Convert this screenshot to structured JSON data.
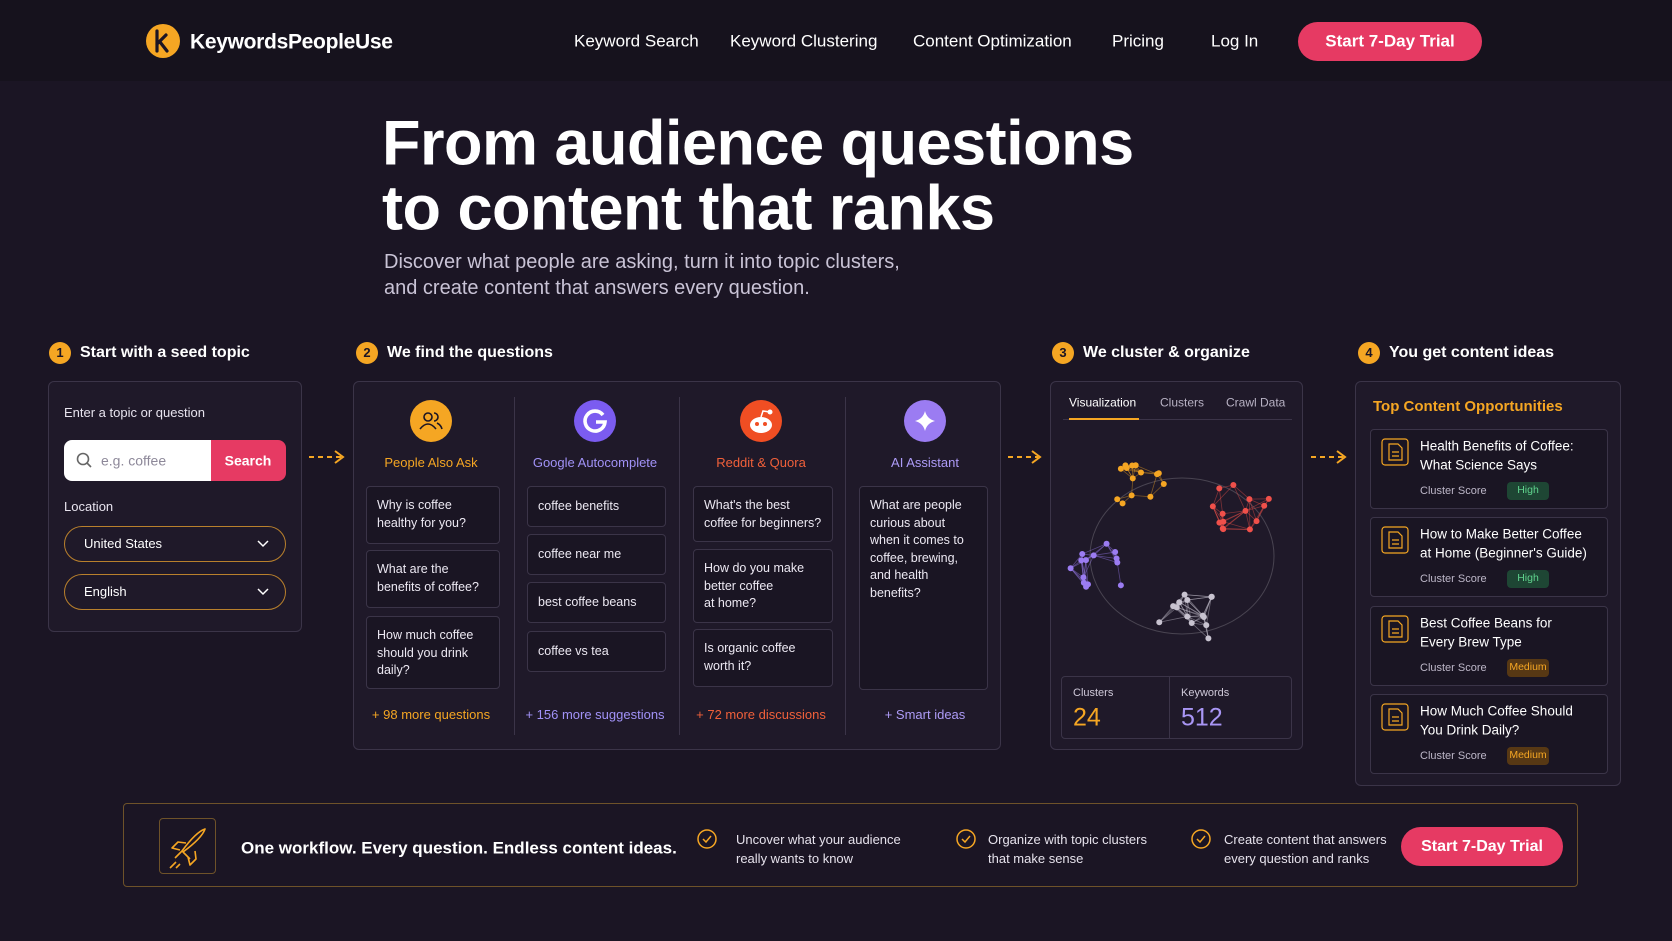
{
  "nav": {
    "brand": "KeywordsPeopleUse",
    "links": [
      "Keyword Search",
      "Keyword Clustering",
      "Content Optimization",
      "Pricing"
    ],
    "login": "Log In",
    "cta": "Start 7-Day Trial"
  },
  "hero": {
    "title_lines": [
      "From audience questions",
      "to content that ranks"
    ],
    "subtitle_lines": [
      "Discover what people are asking, turn it into topic clusters,",
      "and create content that answers every question."
    ]
  },
  "steps": [
    {
      "number": "1",
      "title": "Start with a seed topic"
    },
    {
      "number": "2",
      "title": "We find the questions"
    },
    {
      "number": "3",
      "title": "We cluster & organize"
    },
    {
      "number": "4",
      "title": "You get content ideas"
    }
  ],
  "seed": {
    "label": "Enter a topic or question",
    "placeholder": "e.g. coffee",
    "button": "Search",
    "location_label": "Location",
    "country": "United States",
    "language": "English"
  },
  "sources": [
    {
      "name": "People Also Ask",
      "items": [
        [
          "Why is coffee",
          "healthy for you?"
        ],
        [
          "What are the",
          "benefits of coffee?"
        ],
        [
          "How much coffee",
          "should you drink",
          "daily?"
        ]
      ],
      "more": "+ 98 more questions"
    },
    {
      "name": "Google Autocomplete",
      "items": [
        [
          "coffee benefits"
        ],
        [
          "coffee near me"
        ],
        [
          "best coffee beans"
        ],
        [
          "coffee vs tea"
        ]
      ],
      "more": "+ 156 more suggestions"
    },
    {
      "name": "Reddit & Quora",
      "items": [
        [
          "What's the best",
          "coffee for beginners?"
        ],
        [
          "How do you make",
          "better coffee",
          "at home?"
        ],
        [
          "Is organic coffee",
          "worth it?"
        ]
      ],
      "more": "+ 72 more discussions"
    },
    {
      "name": "AI Assistant",
      "items": [
        [
          "What are people",
          "curious about",
          "when it comes to",
          "coffee, brewing,",
          "and health",
          "benefits?"
        ]
      ],
      "more": "+ Smart ideas"
    }
  ],
  "cluster": {
    "tabs": [
      "Visualization",
      "Clusters",
      "Crawl Data"
    ],
    "stats": [
      {
        "label": "Clusters",
        "value": 24
      },
      {
        "label": "Keywords",
        "value": 512
      }
    ]
  },
  "ideas": {
    "heading": "Top Content Opportunities",
    "items": [
      {
        "title_lines": [
          "Health Benefits of Coffee:",
          "What Science Says"
        ],
        "score_label": "Cluster Score",
        "score": "High"
      },
      {
        "title_lines": [
          "How to Make Better Coffee",
          "at Home (Beginner's Guide)"
        ],
        "score_label": "Cluster Score",
        "score": "High"
      },
      {
        "title_lines": [
          "Best Coffee Beans for",
          "Every Brew Type"
        ],
        "score_label": "Cluster Score",
        "score": "Medium"
      },
      {
        "title_lines": [
          "How Much Coffee Should",
          "You Drink Daily?"
        ],
        "score_label": "Cluster Score",
        "score": "Medium"
      }
    ]
  },
  "footer": {
    "tagline": "One workflow. Every question. Endless content ideas.",
    "benefits": [
      [
        "Uncover what your audience",
        "really wants to know"
      ],
      [
        "Organize with topic clusters",
        "that make sense"
      ],
      [
        "Create content that answers",
        "every question and ranks"
      ]
    ],
    "cta": "Start 7-Day Trial"
  }
}
